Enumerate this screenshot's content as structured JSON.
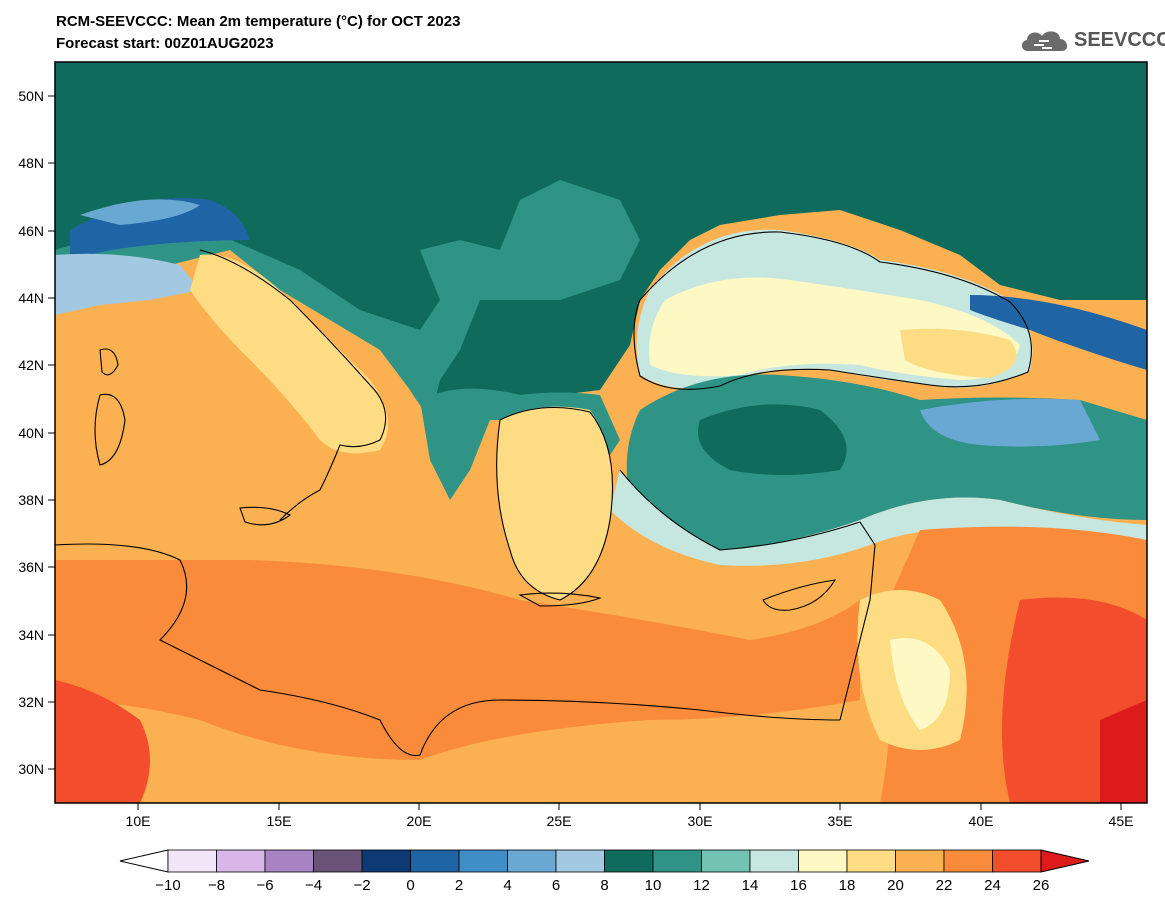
{
  "header": {
    "title_line1": "RCM-SEEVCCC: Mean 2m temperature (°C) for OCT 2023",
    "title_line2": "Forecast start: 00Z01AUG2023"
  },
  "logo": {
    "text": "SEEVCCC",
    "icon": "cloud-icon"
  },
  "map": {
    "lon_ticks": [
      "10E",
      "15E",
      "20E",
      "25E",
      "30E",
      "35E",
      "40E",
      "45E"
    ],
    "lat_ticks": [
      "50N",
      "48N",
      "46N",
      "44N",
      "42N",
      "40N",
      "38N",
      "36N",
      "34N",
      "32N",
      "30N"
    ]
  },
  "colorbar": {
    "labels": [
      "−10",
      "−8",
      "−6",
      "−4",
      "−2",
      "0",
      "2",
      "4",
      "6",
      "8",
      "10",
      "12",
      "14",
      "16",
      "18",
      "20",
      "22",
      "24",
      "26"
    ],
    "colors": [
      "#f1e6f7",
      "#d8b7e8",
      "#a783c4",
      "#6b5378",
      "#0d3a73",
      "#1f64a5",
      "#3f8ec8",
      "#6aa8d4",
      "#a3c8e1",
      "#0f6b5b",
      "#2f9486",
      "#72c3b3",
      "#c5e7e0",
      "#fdf8c4",
      "#fddc83",
      "#fbb151",
      "#f98b3b",
      "#f24d2c"
    ],
    "under_color": "#ffffff",
    "over_color": "#dd1b1b"
  }
}
